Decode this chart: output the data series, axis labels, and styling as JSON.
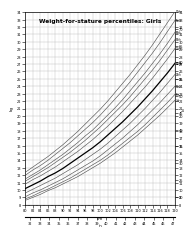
{
  "title": "Weight-for-stature percentiles: Girls",
  "x_cm_min": 80,
  "x_cm_max": 120,
  "y_kg_min": 8,
  "y_kg_max": 34,
  "percentiles": {
    "3rd": {
      "stature": [
        80,
        82,
        84,
        86,
        88,
        90,
        92,
        94,
        96,
        98,
        100,
        102,
        104,
        106,
        108,
        110,
        112,
        114,
        116,
        118,
        120
      ],
      "weight": [
        8.6,
        9.0,
        9.4,
        9.9,
        10.3,
        10.8,
        11.3,
        11.8,
        12.4,
        13.0,
        13.6,
        14.3,
        15.0,
        15.8,
        16.6,
        17.4,
        18.3,
        19.2,
        20.1,
        21.1,
        22.1
      ]
    },
    "5th": {
      "stature": [
        80,
        82,
        84,
        86,
        88,
        90,
        92,
        94,
        96,
        98,
        100,
        102,
        104,
        106,
        108,
        110,
        112,
        114,
        116,
        118,
        120
      ],
      "weight": [
        8.8,
        9.2,
        9.7,
        10.1,
        10.6,
        11.1,
        11.6,
        12.2,
        12.8,
        13.4,
        14.0,
        14.7,
        15.5,
        16.3,
        17.1,
        17.9,
        18.8,
        19.8,
        20.8,
        21.8,
        22.9
      ]
    },
    "10th": {
      "stature": [
        80,
        82,
        84,
        86,
        88,
        90,
        92,
        94,
        96,
        98,
        100,
        102,
        104,
        106,
        108,
        110,
        112,
        114,
        116,
        118,
        120
      ],
      "weight": [
        9.1,
        9.6,
        10.0,
        10.5,
        11.0,
        11.5,
        12.1,
        12.7,
        13.3,
        13.9,
        14.6,
        15.4,
        16.2,
        17.0,
        17.9,
        18.8,
        19.8,
        20.8,
        21.8,
        22.9,
        24.0
      ]
    },
    "25th": {
      "stature": [
        80,
        82,
        84,
        86,
        88,
        90,
        92,
        94,
        96,
        98,
        100,
        102,
        104,
        106,
        108,
        110,
        112,
        114,
        116,
        118,
        120
      ],
      "weight": [
        9.6,
        10.1,
        10.6,
        11.1,
        11.6,
        12.2,
        12.8,
        13.4,
        14.1,
        14.8,
        15.5,
        16.3,
        17.2,
        18.1,
        19.0,
        20.0,
        21.0,
        22.1,
        23.2,
        24.4,
        25.6
      ]
    },
    "50th": {
      "stature": [
        80,
        82,
        84,
        86,
        88,
        90,
        92,
        94,
        96,
        98,
        100,
        102,
        104,
        106,
        108,
        110,
        112,
        114,
        116,
        118,
        120
      ],
      "weight": [
        10.2,
        10.7,
        11.2,
        11.8,
        12.3,
        12.9,
        13.6,
        14.3,
        15.0,
        15.7,
        16.5,
        17.4,
        18.3,
        19.2,
        20.2,
        21.2,
        22.3,
        23.4,
        24.6,
        25.8,
        27.1
      ]
    },
    "75th": {
      "stature": [
        80,
        82,
        84,
        86,
        88,
        90,
        92,
        94,
        96,
        98,
        100,
        102,
        104,
        106,
        108,
        110,
        112,
        114,
        116,
        118,
        120
      ],
      "weight": [
        10.8,
        11.4,
        11.9,
        12.5,
        13.1,
        13.8,
        14.5,
        15.2,
        16.0,
        16.8,
        17.7,
        18.6,
        19.6,
        20.6,
        21.7,
        22.8,
        23.9,
        25.1,
        26.4,
        27.7,
        29.1
      ]
    },
    "85th": {
      "stature": [
        80,
        82,
        84,
        86,
        88,
        90,
        92,
        94,
        96,
        98,
        100,
        102,
        104,
        106,
        108,
        110,
        112,
        114,
        116,
        118,
        120
      ],
      "weight": [
        11.2,
        11.8,
        12.4,
        13.0,
        13.7,
        14.4,
        15.1,
        15.9,
        16.7,
        17.6,
        18.5,
        19.5,
        20.5,
        21.5,
        22.6,
        23.8,
        25.0,
        26.2,
        27.5,
        28.9,
        30.3
      ]
    },
    "90th": {
      "stature": [
        80,
        82,
        84,
        86,
        88,
        90,
        92,
        94,
        96,
        98,
        100,
        102,
        104,
        106,
        108,
        110,
        112,
        114,
        116,
        118,
        120
      ],
      "weight": [
        11.5,
        12.1,
        12.7,
        13.4,
        14.1,
        14.8,
        15.6,
        16.4,
        17.3,
        18.1,
        19.1,
        20.1,
        21.1,
        22.2,
        23.4,
        24.6,
        25.8,
        27.1,
        28.4,
        29.8,
        31.3
      ]
    },
    "95th": {
      "stature": [
        80,
        82,
        84,
        86,
        88,
        90,
        92,
        94,
        96,
        98,
        100,
        102,
        104,
        106,
        108,
        110,
        112,
        114,
        116,
        118,
        120
      ],
      "weight": [
        12.0,
        12.7,
        13.3,
        14.0,
        14.8,
        15.6,
        16.4,
        17.3,
        18.2,
        19.1,
        20.1,
        21.2,
        22.3,
        23.4,
        24.6,
        25.9,
        27.2,
        28.5,
        29.9,
        31.4,
        32.9
      ]
    },
    "97th": {
      "stature": [
        80,
        82,
        84,
        86,
        88,
        90,
        92,
        94,
        96,
        98,
        100,
        102,
        104,
        106,
        108,
        110,
        112,
        114,
        116,
        118,
        120
      ],
      "weight": [
        12.4,
        13.1,
        13.8,
        14.5,
        15.3,
        16.1,
        17.0,
        17.9,
        18.9,
        19.9,
        20.9,
        22.0,
        23.2,
        24.4,
        25.6,
        26.9,
        28.2,
        29.6,
        31.1,
        32.6,
        34.1
      ]
    }
  },
  "bold_percentile": "50th",
  "bg_color": "#ffffff",
  "grid_major_color": "#bbbbbb",
  "grid_minor_color": "#dddddd",
  "line_color": "#555555",
  "bold_color": "#000000",
  "cm_ticks": [
    80,
    82,
    84,
    86,
    88,
    90,
    92,
    94,
    96,
    98,
    100,
    102,
    104,
    106,
    108,
    110,
    112,
    114,
    116,
    118,
    120
  ],
  "cm_minor_ticks": [
    81,
    83,
    85,
    87,
    89,
    91,
    93,
    95,
    97,
    99,
    101,
    103,
    105,
    107,
    109,
    111,
    113,
    115,
    117,
    119
  ],
  "kg_ticks": [
    8,
    9,
    10,
    11,
    12,
    13,
    14,
    15,
    16,
    17,
    18,
    19,
    20,
    21,
    22,
    23,
    24,
    25,
    26,
    27,
    28,
    29,
    30,
    31,
    32,
    33,
    34
  ],
  "lb_ticks_vals": [
    20,
    25,
    30,
    35,
    40,
    45,
    50,
    55,
    60,
    65,
    70,
    75
  ],
  "in_ticks_vals": [
    32,
    33,
    34,
    35,
    36,
    37,
    38,
    39,
    40,
    41,
    42,
    43,
    44,
    45,
    46,
    47
  ],
  "percentile_order": [
    "3rd",
    "5th",
    "10th",
    "25th",
    "50th",
    "75th",
    "85th",
    "90th",
    "95th",
    "97th"
  ]
}
